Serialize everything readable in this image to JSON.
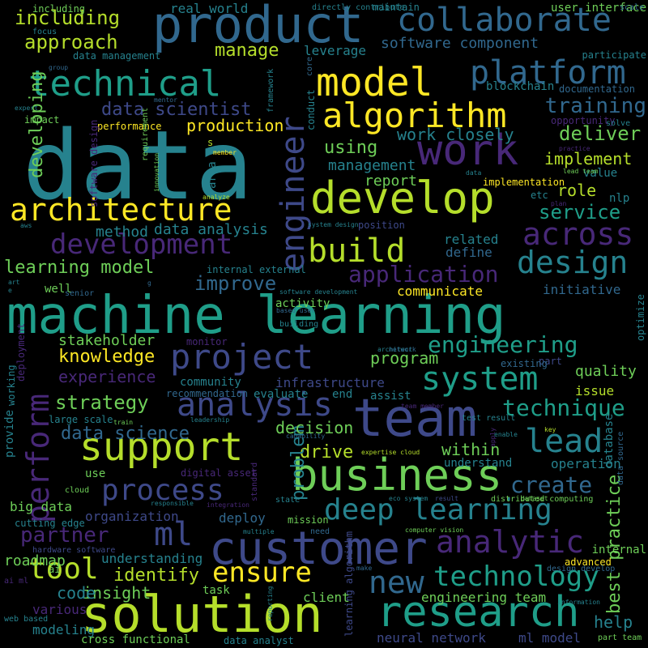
{
  "palette": {
    "yellow": "#fde725",
    "lime": "#b5de2b",
    "green": "#6ece58",
    "teal_green": "#35b779",
    "teal": "#26828e",
    "cyan_teal": "#1f9e89",
    "blue": "#31688e",
    "indigo": "#3e4989",
    "purple": "#482878",
    "dark_purple": "#440154"
  },
  "words": [
    "data",
    "machine learning",
    "product",
    "team",
    "solution",
    "work",
    "model",
    "develop",
    "business",
    "customer",
    "research",
    "support",
    "technical",
    "algorithm",
    "architecture",
    "platform",
    "collaborate",
    "engineer",
    "project",
    "system",
    "analysis",
    "development",
    "build",
    "deep learning",
    "across",
    "design",
    "perform",
    "ml",
    "process",
    "analytic",
    "technology",
    "lead",
    "tool",
    "ensure",
    "new",
    "application",
    "technique",
    "create",
    "engineering",
    "strategy",
    "service",
    "improve",
    "including",
    "approach",
    "training",
    "deliver",
    "data science",
    "data scientist",
    "learning model",
    "partner",
    "experience",
    "knowledge",
    "stakeholder",
    "best practice",
    "insight",
    "code",
    "help",
    "identify",
    "drive",
    "within",
    "problem",
    "decision",
    "program",
    "role",
    "implement",
    "using",
    "work closely",
    "developing",
    "production",
    "management",
    "report",
    "method",
    "data analysis",
    "related",
    "define",
    "manage",
    "leverage",
    "software component",
    "real world",
    "communicate",
    "initiative",
    "activity",
    "infrastructure",
    "community",
    "quality",
    "issue",
    "assist",
    "evaluate",
    "end",
    "operation",
    "understand",
    "organization",
    "deploy",
    "use",
    "big data",
    "understanding",
    "modeling",
    "various",
    "cross functional",
    "neural network",
    "ml model",
    "engineering team",
    "client",
    "task",
    "provide",
    "internal",
    "advanced",
    "well",
    "senior",
    "impact",
    "performance",
    "blockchain",
    "documentation",
    "opportunity",
    "solve",
    "requirement",
    "area",
    "s",
    "member",
    "etc",
    "nlp",
    "value",
    "implementation",
    "conduct",
    "core",
    "framework",
    "including",
    "directly contribute",
    "maintain",
    "user interface",
    "scale",
    "focus",
    "data management",
    "participate",
    "group",
    "expert",
    "software design",
    "innovation",
    "analyze",
    "aws",
    "practice",
    "lead team",
    "plan",
    "system design",
    "position",
    "internal external",
    "software development",
    "based user",
    "building",
    "architect",
    "monitor",
    "deployment",
    "working",
    "recommendation",
    "large scale",
    "train",
    "leadership",
    "test result",
    "team member",
    "expertise cloud",
    "capability",
    "digital asset",
    "responsible",
    "integration",
    "standard",
    "state",
    "eco system",
    "result",
    "distributed computing",
    "dataset",
    "data source",
    "database",
    "cloud",
    "cutting edge",
    "multiple",
    "mission",
    "need",
    "computer vision",
    "hardware software",
    "roadmap",
    "ai",
    "ai ml",
    "make",
    "design develop",
    "information",
    "part team",
    "web based",
    "data analyst",
    "learning algorithm",
    "reporting",
    "optimize",
    "network",
    "part",
    "existing",
    "key",
    "enable",
    "apply",
    "art",
    "e",
    "g",
    "mentor",
    "data",
    "related"
  ]
}
